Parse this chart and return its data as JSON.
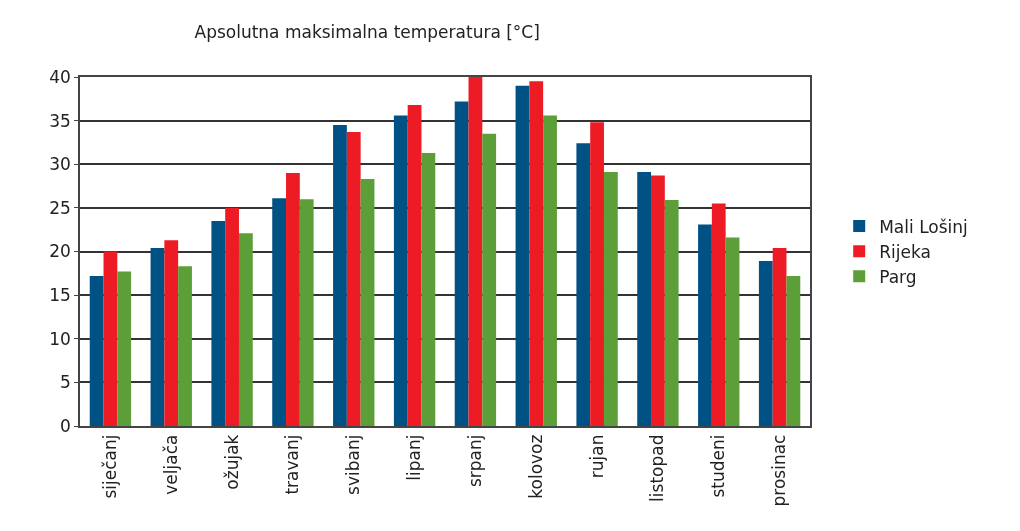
{
  "chart_data": {
    "type": "bar",
    "title": "Apsolutna maksimalna temperatura [°C]",
    "categories": [
      "siječanj",
      "veljača",
      "ožujak",
      "travanj",
      "svibanj",
      "lipanj",
      "srpanj",
      "kolovoz",
      "rujan",
      "listopad",
      "studeni",
      "prosinac"
    ],
    "series": [
      {
        "name": "Mali Lošinj",
        "color": "#005285",
        "values": [
          17.2,
          20.4,
          23.5,
          26.1,
          34.5,
          35.6,
          37.2,
          39.0,
          32.4,
          29.1,
          23.1,
          18.9
        ]
      },
      {
        "name": "Rijeka",
        "color": "#ed1c24",
        "values": [
          20.0,
          21.3,
          25.0,
          29.0,
          33.7,
          36.8,
          40.0,
          39.5,
          34.8,
          28.7,
          25.5,
          20.4
        ]
      },
      {
        "name": "Parg",
        "color": "#5c9e38",
        "values": [
          17.7,
          18.3,
          22.1,
          26.0,
          28.3,
          31.3,
          33.5,
          35.6,
          29.1,
          25.9,
          21.6,
          17.2
        ]
      }
    ],
    "ylim": [
      0,
      40
    ],
    "yticks": [
      0,
      5,
      10,
      15,
      20,
      25,
      30,
      35,
      40
    ],
    "grid": "y",
    "legend": "right"
  }
}
